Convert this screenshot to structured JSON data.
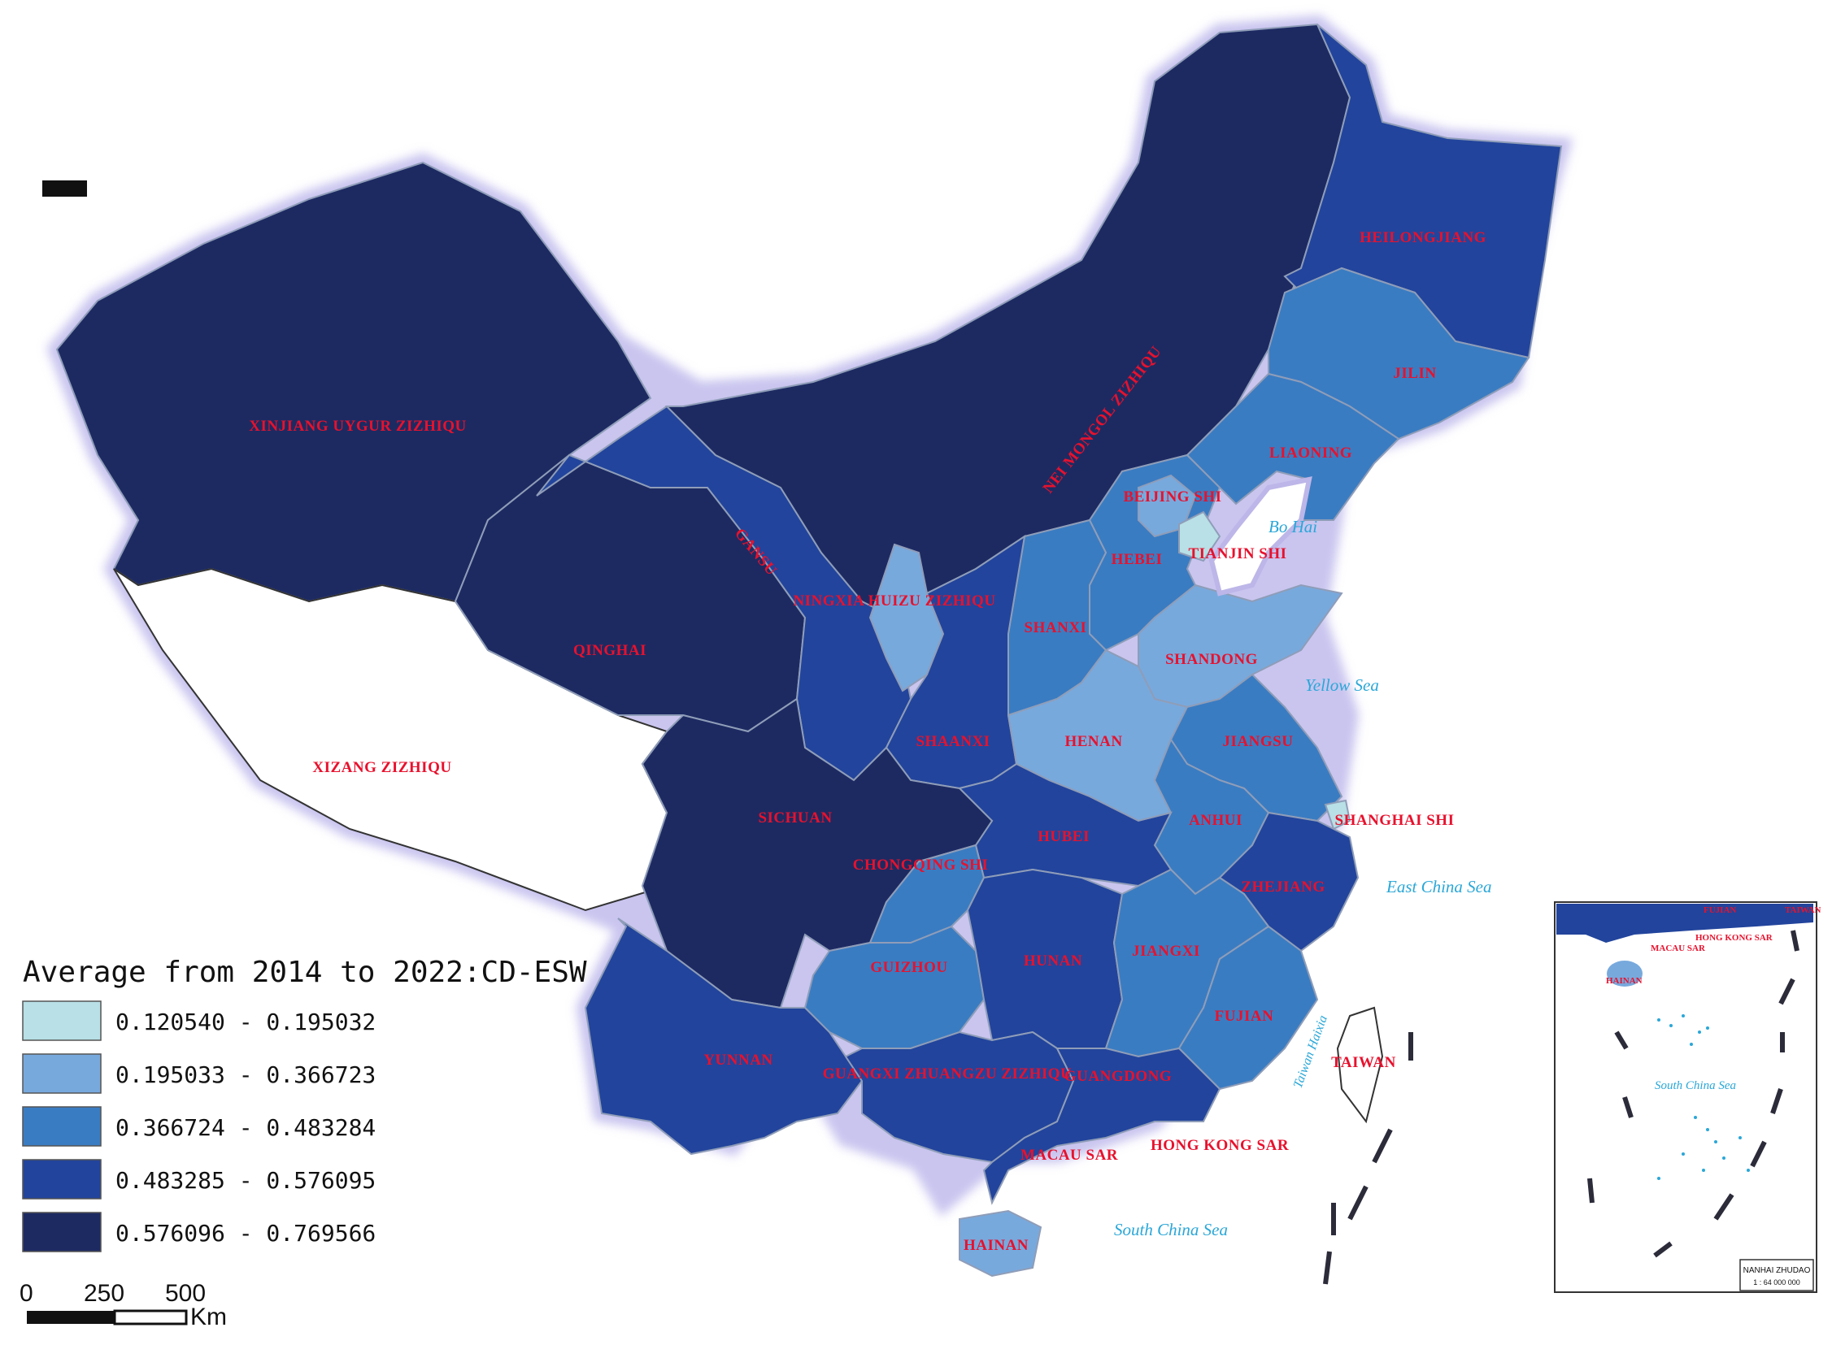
{
  "legend": {
    "title": "Average from 2014 to 2022:CD-ESW",
    "classes": [
      {
        "label": "0.120540 - 0.195032",
        "color": "#b8e0e6"
      },
      {
        "label": "0.195033 - 0.366723",
        "color": "#78a9dd"
      },
      {
        "label": "0.366724 - 0.483284",
        "color": "#3a7cc2"
      },
      {
        "label": "0.483285 - 0.576095",
        "color": "#22449c"
      },
      {
        "label": "0.576096 - 0.769566",
        "color": "#1d2a62"
      }
    ]
  },
  "scale_bar": {
    "ticks": [
      "0",
      "250",
      "500"
    ],
    "unit": "Km"
  },
  "provinces": [
    {
      "name": "XINJIANG UYGUR ZIZHIQU",
      "class": 4
    },
    {
      "name": "XIZANG ZIZHIQU",
      "class": null
    },
    {
      "name": "QINGHAI",
      "class": 4
    },
    {
      "name": "GANSU",
      "class": 3
    },
    {
      "name": "NEI MONGOL ZIZHIQU",
      "class": 4
    },
    {
      "name": "HEILONGJIANG",
      "class": 3
    },
    {
      "name": "JILIN",
      "class": 2
    },
    {
      "name": "LIAONING",
      "class": 2
    },
    {
      "name": "BEIJING SHI",
      "class": 1
    },
    {
      "name": "TIANJIN SHI",
      "class": 0
    },
    {
      "name": "HEBEI",
      "class": 2
    },
    {
      "name": "SHANXI",
      "class": 2
    },
    {
      "name": "SHANDONG",
      "class": 1
    },
    {
      "name": "NINGXIA HUIZU ZIZHIQU",
      "class": 1
    },
    {
      "name": "SHAANXI",
      "class": 3
    },
    {
      "name": "HENAN",
      "class": 1
    },
    {
      "name": "JIANGSU",
      "class": 2
    },
    {
      "name": "SHANGHAI SHI",
      "class": 0
    },
    {
      "name": "ANHUI",
      "class": 2
    },
    {
      "name": "HUBEI",
      "class": 3
    },
    {
      "name": "SICHUAN",
      "class": 4
    },
    {
      "name": "CHONGQING SHI",
      "class": 2
    },
    {
      "name": "ZHEJIANG",
      "class": 3
    },
    {
      "name": "GUIZHOU",
      "class": 2
    },
    {
      "name": "HUNAN",
      "class": 3
    },
    {
      "name": "JIANGXI",
      "class": 2
    },
    {
      "name": "FUJIAN",
      "class": 2
    },
    {
      "name": "YUNNAN",
      "class": 3
    },
    {
      "name": "GUANGXI ZHUANGZU ZIZHIQU",
      "class": 3
    },
    {
      "name": "GUANGDONG",
      "class": 3
    },
    {
      "name": "HAINAN",
      "class": 1
    },
    {
      "name": "TAIWAN",
      "class": null
    },
    {
      "name": "HONG KONG SAR",
      "class": null
    },
    {
      "name": "MACAU SAR",
      "class": null
    }
  ],
  "seas": [
    "Bo Hai",
    "Yellow Sea",
    "East China Sea",
    "South China Sea",
    "Taiwan Haixia"
  ],
  "inset": {
    "sea_label": "South China Sea",
    "labels": [
      "FUJIAN",
      "TAIWAN",
      "HONG KONG SAR",
      "MACAU SAR",
      "HAINAN"
    ],
    "caption": "NANHAI ZHUDAO",
    "scale": "1 : 64 000 000"
  }
}
